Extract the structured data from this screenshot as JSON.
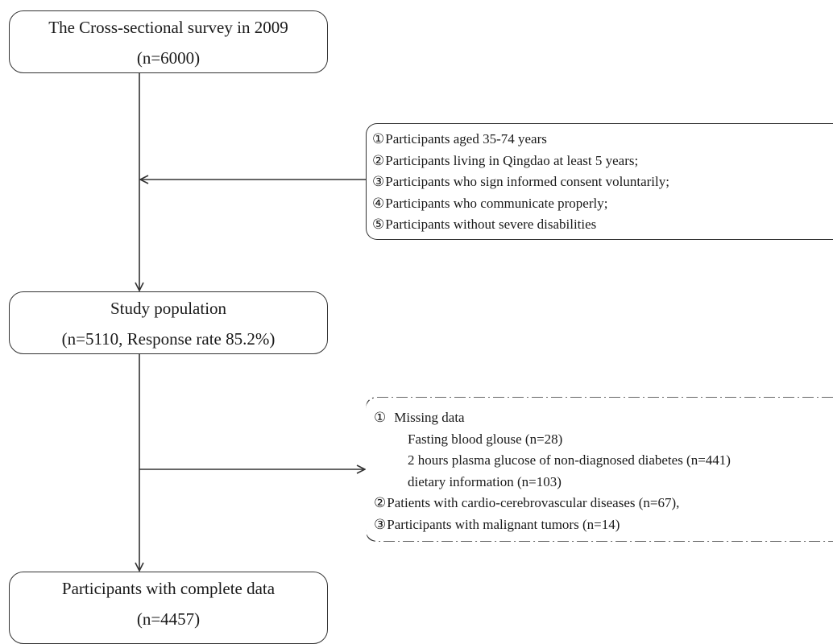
{
  "survey_box": {
    "line1": "The Cross-sectional survey in 2009",
    "line2": "(n=6000)"
  },
  "inclusion_criteria": [
    {
      "num": "①",
      "text": "Participants aged 35-74 years"
    },
    {
      "num": "②",
      "text": "Participants living in Qingdao at least 5 years;"
    },
    {
      "num": "③",
      "text": "Participants who sign informed consent voluntarily;"
    },
    {
      "num": "④",
      "text": "Participants who communicate properly;"
    },
    {
      "num": "⑤",
      "text": "Participants without severe disabilities"
    }
  ],
  "study_box": {
    "line1": "Study population",
    "line2": "(n=5110, Response rate 85.2%)"
  },
  "exclusion_criteria": {
    "item1_num": "①",
    "item1_text": "Missing data",
    "sub_items": [
      "Fasting blood glouse (n=28)",
      "2 hours plasma glucose of non-diagnosed diabetes (n=441)",
      "dietary information (n=103)"
    ],
    "item2_num": "②",
    "item2_text": "Patients with cardio-cerebrovascular diseases (n=67),",
    "item3_num": "③",
    "item3_text": "Participants with malignant tumors (n=14)"
  },
  "final_box": {
    "line1": "Participants with complete data",
    "line2": "(n=4457)"
  },
  "colors": {
    "stroke": "#333333",
    "text": "#1a1a1a",
    "background": "#ffffff"
  }
}
